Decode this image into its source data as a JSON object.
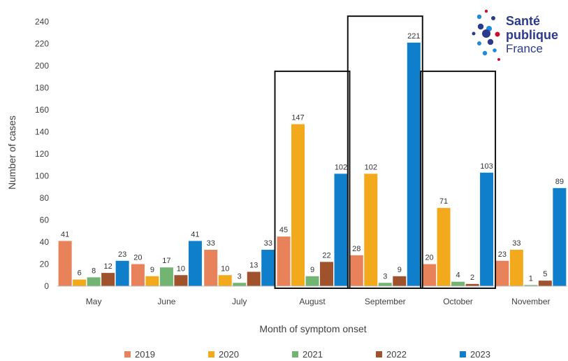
{
  "logo": {
    "line1": "Santé",
    "line2": "publique",
    "line3": "France"
  },
  "chart_data": {
    "type": "bar",
    "xlabel": "Month of symptom onset",
    "ylabel": "Number of cases",
    "ylim": [
      0,
      240
    ],
    "yticks": [
      0,
      20,
      40,
      60,
      80,
      100,
      120,
      140,
      160,
      180,
      200,
      220,
      240
    ],
    "grid": false,
    "legend_position": "bottom",
    "categories": [
      "May",
      "June",
      "July",
      "August",
      "September",
      "October",
      "November"
    ],
    "series": [
      {
        "name": "2019",
        "color": "#E8825A",
        "values": [
          41,
          20,
          33,
          45,
          28,
          20,
          23
        ]
      },
      {
        "name": "2020",
        "color": "#F2A91C",
        "values": [
          6,
          9,
          10,
          147,
          102,
          71,
          33
        ]
      },
      {
        "name": "2021",
        "color": "#72B573",
        "values": [
          8,
          17,
          3,
          9,
          3,
          4,
          1
        ]
      },
      {
        "name": "2022",
        "color": "#A0522D",
        "values": [
          12,
          10,
          13,
          22,
          9,
          2,
          5
        ]
      },
      {
        "name": "2023",
        "color": "#0F7FCB",
        "values": [
          23,
          41,
          33,
          102,
          221,
          103,
          89
        ]
      }
    ],
    "highlighted_categories": [
      "August",
      "September",
      "October"
    ]
  }
}
